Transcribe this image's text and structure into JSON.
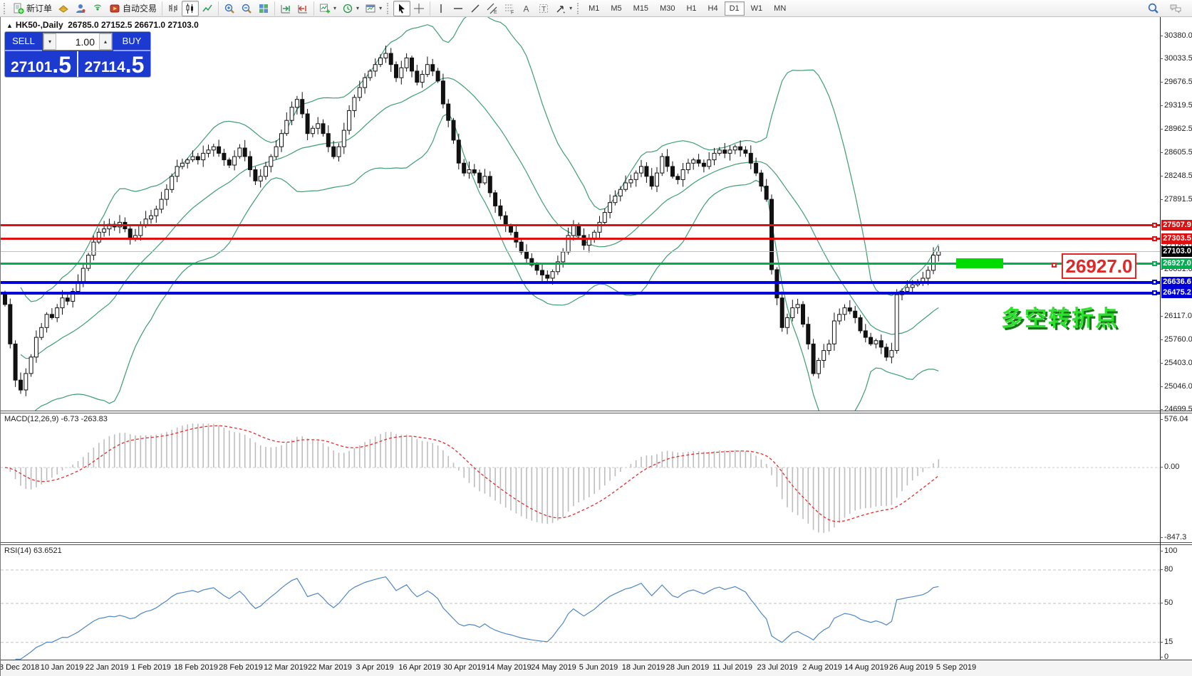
{
  "icons": {
    "caret_down": "▾",
    "caret_up": "▴",
    "triangle_up": "▲"
  },
  "toolbar": {
    "new_order_label": "新订单",
    "autotrade_label": "自动交易",
    "timeframes": [
      "M1",
      "M5",
      "M15",
      "M30",
      "H1",
      "H4",
      "D1",
      "W1",
      "MN"
    ],
    "active_timeframe": "D1"
  },
  "chart": {
    "title_symbol": "HK50-,Daily",
    "title_ohlc": "26785.0 27152.5 26671.0 27103.0"
  },
  "quote_panel": {
    "sell_label": "SELL",
    "buy_label": "BUY",
    "volume": "1.00",
    "sell_price_main": "27101",
    "sell_price_frac": ".5",
    "buy_price_main": "27114",
    "buy_price_frac": ".5"
  },
  "panes": {
    "macd_label": "MACD(12,26,9) -6.73 -263.83",
    "rsi_label": "RSI(14) 63.6521",
    "macd_axis": [
      {
        "text": "576.04",
        "v": 576.04
      },
      {
        "text": "0.00",
        "v": 0
      },
      {
        "text": "-847.3",
        "v": -847.3
      }
    ],
    "rsi_axis": [
      {
        "text": "100",
        "v": 100
      },
      {
        "text": "80",
        "v": 80
      },
      {
        "text": "50",
        "v": 50
      },
      {
        "text": "15",
        "v": 15
      },
      {
        "text": "0",
        "v": 0
      }
    ]
  },
  "price_axis": {
    "plain_labels": [
      {
        "text": "30380.0",
        "price": 30380.0
      },
      {
        "text": "30033.5",
        "price": 30033.5
      },
      {
        "text": "29676.5",
        "price": 29676.5
      },
      {
        "text": "29319.5",
        "price": 29319.5
      },
      {
        "text": "28962.5",
        "price": 28962.5
      },
      {
        "text": "28605.5",
        "price": 28605.5
      },
      {
        "text": "28248.5",
        "price": 28248.5
      },
      {
        "text": "27891.5",
        "price": 27891.5
      },
      {
        "text": "27188.0",
        "price": 27188.0
      },
      {
        "text": "26831.0",
        "price": 26831.0
      },
      {
        "text": "26117.0",
        "price": 26117.0
      },
      {
        "text": "25760.0",
        "price": 25760.0
      },
      {
        "text": "25403.0",
        "price": 25403.0
      },
      {
        "text": "25046.0",
        "price": 25046.0
      },
      {
        "text": "24699.5",
        "price": 24699.5
      }
    ],
    "badges": [
      {
        "text": "27507.9",
        "price": 27507.9,
        "bg": "#dd1111"
      },
      {
        "text": "27303.5",
        "price": 27303.5,
        "bg": "#dd1111"
      },
      {
        "text": "27103.0",
        "price": 27103.0,
        "bg": "#000000"
      },
      {
        "text": "26927.0",
        "price": 26927.0,
        "bg": "#00b050"
      },
      {
        "text": "26636.6",
        "price": 26636.6,
        "bg": "#0000d8"
      },
      {
        "text": "26475.2",
        "price": 26475.2,
        "bg": "#0000d8"
      }
    ]
  },
  "levels": [
    {
      "price": 27507.9,
      "color": "#dd1111",
      "thickness": 3,
      "connector": true
    },
    {
      "price": 27303.5,
      "color": "#dd1111",
      "thickness": 3,
      "connector": true
    },
    {
      "price": 27103.0,
      "color": "#c0c0c0",
      "thickness": 1,
      "connector": false
    },
    {
      "price": 26927.0,
      "color": "#00b050",
      "thickness": 3,
      "connector": true
    },
    {
      "price": 26636.6,
      "color": "#0000d8",
      "thickness": 4,
      "connector": true
    },
    {
      "price": 26475.2,
      "color": "#0000d8",
      "thickness": 4,
      "connector": true
    }
  ],
  "annotations": {
    "turning_point_text": "多空转折点",
    "price_flag_text": "26927.0",
    "highlight_color": "#00dc00"
  },
  "chart_data": {
    "type": "candlestick",
    "symbol": "HK50",
    "period": "Daily",
    "title": "HK50-,Daily 26785.0 27152.5 26671.0 27103.0",
    "last_ohlc": {
      "open": 26785.0,
      "high": 27152.5,
      "low": 26671.0,
      "close": 27103.0
    },
    "price_range": [
      24699.5,
      30380.0
    ],
    "dates": [
      "28 Dec 2018",
      "10 Jan 2019",
      "22 Jan 2019",
      "1 Feb 2019",
      "18 Feb 2019",
      "28 Feb 2019",
      "12 Mar 2019",
      "22 Mar 2019",
      "3 Apr 2019",
      "16 Apr 2019",
      "30 Apr 2019",
      "14 May 2019",
      "24 May 2019",
      "5 Jun 2019",
      "18 Jun 2019",
      "28 Jun 2019",
      "11 Jul 2019",
      "23 Jul 2019",
      "2 Aug 2019",
      "14 Aug 2019",
      "26 Aug 2019",
      "5 Sep 2019"
    ],
    "closes": [
      26300,
      25700,
      25150,
      25000,
      25250,
      25500,
      25800,
      25950,
      26150,
      26100,
      26250,
      26400,
      26350,
      26500,
      26650,
      26850,
      27050,
      27250,
      27400,
      27450,
      27520,
      27480,
      27550,
      27450,
      27300,
      27350,
      27500,
      27600,
      27650,
      27750,
      27900,
      28050,
      28250,
      28400,
      28450,
      28500,
      28550,
      28500,
      28600,
      28650,
      28700,
      28600,
      28500,
      28420,
      28550,
      28680,
      28550,
      28350,
      28180,
      28250,
      28400,
      28550,
      28700,
      28900,
      29100,
      29300,
      29420,
      29200,
      28900,
      28980,
      29050,
      28900,
      28700,
      28550,
      28700,
      28950,
      29250,
      29450,
      29600,
      29750,
      29850,
      29950,
      30050,
      30120,
      29950,
      29750,
      29900,
      30050,
      29850,
      29680,
      29800,
      29950,
      29850,
      29700,
      29350,
      29100,
      28800,
      28450,
      28300,
      28350,
      28300,
      28150,
      28250,
      28000,
      27800,
      27650,
      27500,
      27400,
      27250,
      27100,
      27000,
      26900,
      26820,
      26750,
      26700,
      26800,
      26950,
      27100,
      27350,
      27500,
      27350,
      27200,
      27300,
      27400,
      27550,
      27700,
      27850,
      27950,
      28050,
      28150,
      28200,
      28300,
      28400,
      28250,
      28100,
      28300,
      28550,
      28400,
      28250,
      28200,
      28350,
      28450,
      28500,
      28450,
      28400,
      28500,
      28600,
      28650,
      28600,
      28650,
      28700,
      28650,
      28600,
      28450,
      28300,
      28100,
      27900,
      26830,
      26400,
      25950,
      26100,
      26250,
      26300,
      26000,
      25700,
      25250,
      25450,
      25600,
      25700,
      26050,
      26150,
      26250,
      26200,
      26100,
      25900,
      25800,
      25700,
      25750,
      25650,
      25500,
      25600,
      26450,
      26500,
      26560,
      26600,
      26650,
      26700,
      26820,
      27050,
      27103
    ],
    "bollinger": {
      "period": 20,
      "deviation": 2,
      "color": "#3f9e72"
    },
    "macd": {
      "fast": 12,
      "slow": 26,
      "signal_period": 9,
      "current_values": "-6.73 -263.83",
      "axis_range": [
        -847.3,
        576.04
      ]
    },
    "rsi": {
      "period": 14,
      "current_value": 63.6521,
      "levels": [
        80,
        50,
        15
      ]
    },
    "key_levels": {
      "resistance": [
        27507.9,
        27303.5
      ],
      "pivot": 26927.0,
      "support": [
        26636.6,
        26475.2
      ],
      "last_price": 27103.0
    }
  }
}
